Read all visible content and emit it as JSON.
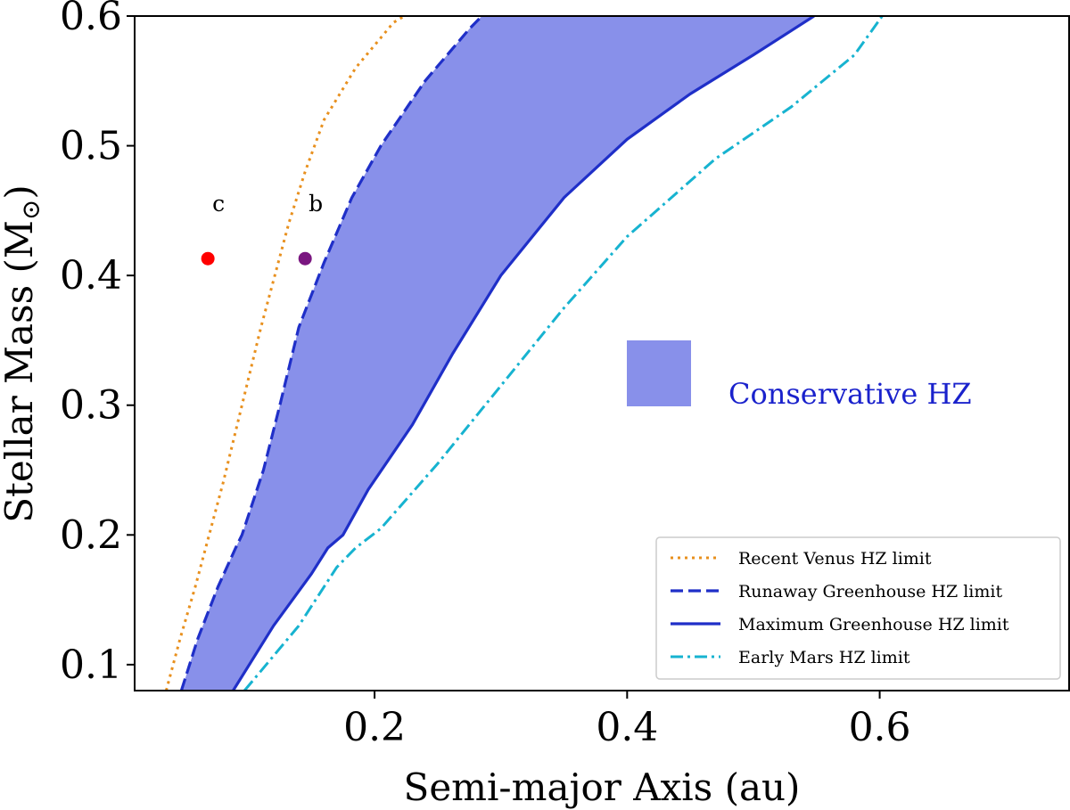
{
  "chart_data": {
    "type": "line",
    "xlabel": "Semi-major Axis (au)",
    "ylabel_main": "Stellar Mass (M",
    "ylabel_symbol": "⊙",
    "ylabel_close": ")",
    "xlim": [
      0.01,
      0.75
    ],
    "ylim": [
      0.08,
      0.6
    ],
    "xticks": [
      0.2,
      0.4,
      0.6
    ],
    "xtick_labels": [
      "0.2",
      "0.4",
      "0.6"
    ],
    "yticks": [
      0.1,
      0.2,
      0.3,
      0.4,
      0.5,
      0.6
    ],
    "ytick_labels": [
      "0.1",
      "0.2",
      "0.3",
      "0.4",
      "0.5",
      "0.6"
    ],
    "series": [
      {
        "name": "Recent Venus HZ limit",
        "style": "dotted",
        "color": "#e8901e",
        "x": [
          0.035,
          0.046,
          0.058,
          0.069,
          0.08,
          0.09,
          0.1,
          0.11,
          0.121,
          0.132,
          0.145,
          0.16,
          0.185,
          0.215,
          0.232
        ],
        "y": [
          0.08,
          0.12,
          0.16,
          0.2,
          0.24,
          0.28,
          0.32,
          0.36,
          0.4,
          0.44,
          0.48,
          0.52,
          0.56,
          0.595,
          0.605
        ]
      },
      {
        "name": "Runaway Greenhouse HZ limit",
        "style": "dashed",
        "color": "#1f2fc8",
        "x": [
          0.047,
          0.06,
          0.076,
          0.09,
          0.095,
          0.112,
          0.125,
          0.14,
          0.16,
          0.182,
          0.205,
          0.24,
          0.275,
          0.285
        ],
        "y": [
          0.08,
          0.12,
          0.16,
          0.19,
          0.2,
          0.25,
          0.3,
          0.36,
          0.41,
          0.46,
          0.5,
          0.55,
          0.59,
          0.6
        ]
      },
      {
        "name": "Maximum Greenhouse HZ limit",
        "style": "solid",
        "color": "#1f2fc8",
        "x": [
          0.088,
          0.12,
          0.15,
          0.163,
          0.175,
          0.195,
          0.23,
          0.262,
          0.3,
          0.35,
          0.4,
          0.45,
          0.5,
          0.548
        ],
        "y": [
          0.08,
          0.13,
          0.17,
          0.19,
          0.2,
          0.235,
          0.285,
          0.34,
          0.4,
          0.46,
          0.505,
          0.54,
          0.57,
          0.6
        ]
      },
      {
        "name": "Early Mars HZ limit",
        "style": "dashdot",
        "color": "#17b3d0",
        "x": [
          0.097,
          0.14,
          0.17,
          0.185,
          0.205,
          0.25,
          0.3,
          0.35,
          0.4,
          0.47,
          0.53,
          0.58,
          0.602
        ],
        "y": [
          0.08,
          0.13,
          0.175,
          0.19,
          0.205,
          0.255,
          0.315,
          0.375,
          0.43,
          0.49,
          0.53,
          0.57,
          0.6
        ]
      }
    ],
    "hz_fill": {
      "name": "Conservative HZ",
      "color": "#8890ea",
      "label_color": "#1a22cc"
    },
    "planets": [
      {
        "name": "c",
        "x": 0.068,
        "y": 0.413,
        "color": "#ff0000"
      },
      {
        "name": "b",
        "x": 0.145,
        "y": 0.413,
        "color": "#7a1680"
      }
    ],
    "legend": {
      "position": "lower-right",
      "entries": [
        "Recent Venus HZ limit",
        "Runaway Greenhouse HZ limit",
        "Maximum Greenhouse HZ limit",
        "Early Mars HZ limit"
      ]
    },
    "annotation": "Conservative HZ"
  }
}
